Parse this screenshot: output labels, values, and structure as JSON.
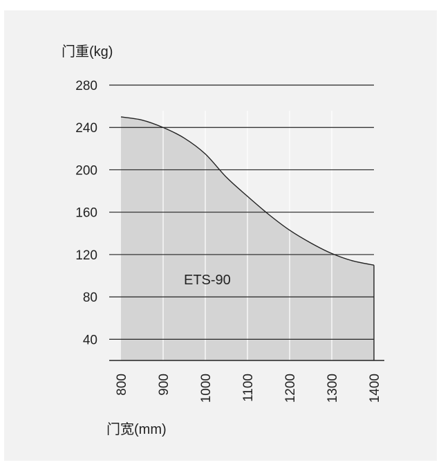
{
  "chart_data": {
    "type": "area",
    "ylabel": "门重(kg)",
    "xlabel": "门宽(mm)",
    "series_label": "ETS-90",
    "x": [
      800,
      850,
      900,
      950,
      1000,
      1050,
      1100,
      1150,
      1200,
      1250,
      1300,
      1350,
      1400
    ],
    "y": [
      250,
      247,
      240,
      230,
      215,
      193,
      175,
      158,
      143,
      131,
      121,
      114,
      110
    ],
    "xticks": [
      "800",
      "900",
      "1000",
      "1100",
      "1200",
      "1300",
      "1400"
    ],
    "yticks": [
      "40",
      "80",
      "120",
      "160",
      "200",
      "240",
      "280"
    ],
    "xlim": [
      800,
      1400
    ],
    "ylim": [
      20,
      280
    ],
    "grid": true,
    "colors": {
      "fill": "#d4d4d4",
      "line": "#222222",
      "grid": "#222222",
      "vgrid": "#ffffff",
      "panel": "#f2f2f2"
    }
  }
}
